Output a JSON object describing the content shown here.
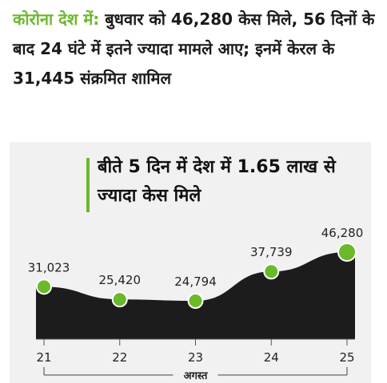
{
  "headline": {
    "kicker": "कोरोना देश में:",
    "text": " बुधवार को 46,280 केस मिले, 56 दिनों के बाद 24 घंटे में इतने ज्यादा मामले आए; इनमें केरल के 31,445 संक्रमित शामिल"
  },
  "colors": {
    "accent": "#6bb82b",
    "area": "#1c1c1c",
    "card": "#f1f1f1"
  },
  "chart_data": {
    "type": "area",
    "title": "बीते 5 दिन में देश में 1.65 लाख से ज्यादा केस मिले",
    "x": [
      "21",
      "22",
      "23",
      "24",
      "25"
    ],
    "values": [
      31023,
      25420,
      24794,
      37739,
      46280
    ],
    "labels": [
      "31,023",
      "25,420",
      "24,794",
      "37,739",
      "46,280"
    ],
    "xlabel": "अगस्त",
    "ylabel": "",
    "ylim": [
      0,
      50000
    ],
    "grid": false,
    "legend": "none"
  }
}
